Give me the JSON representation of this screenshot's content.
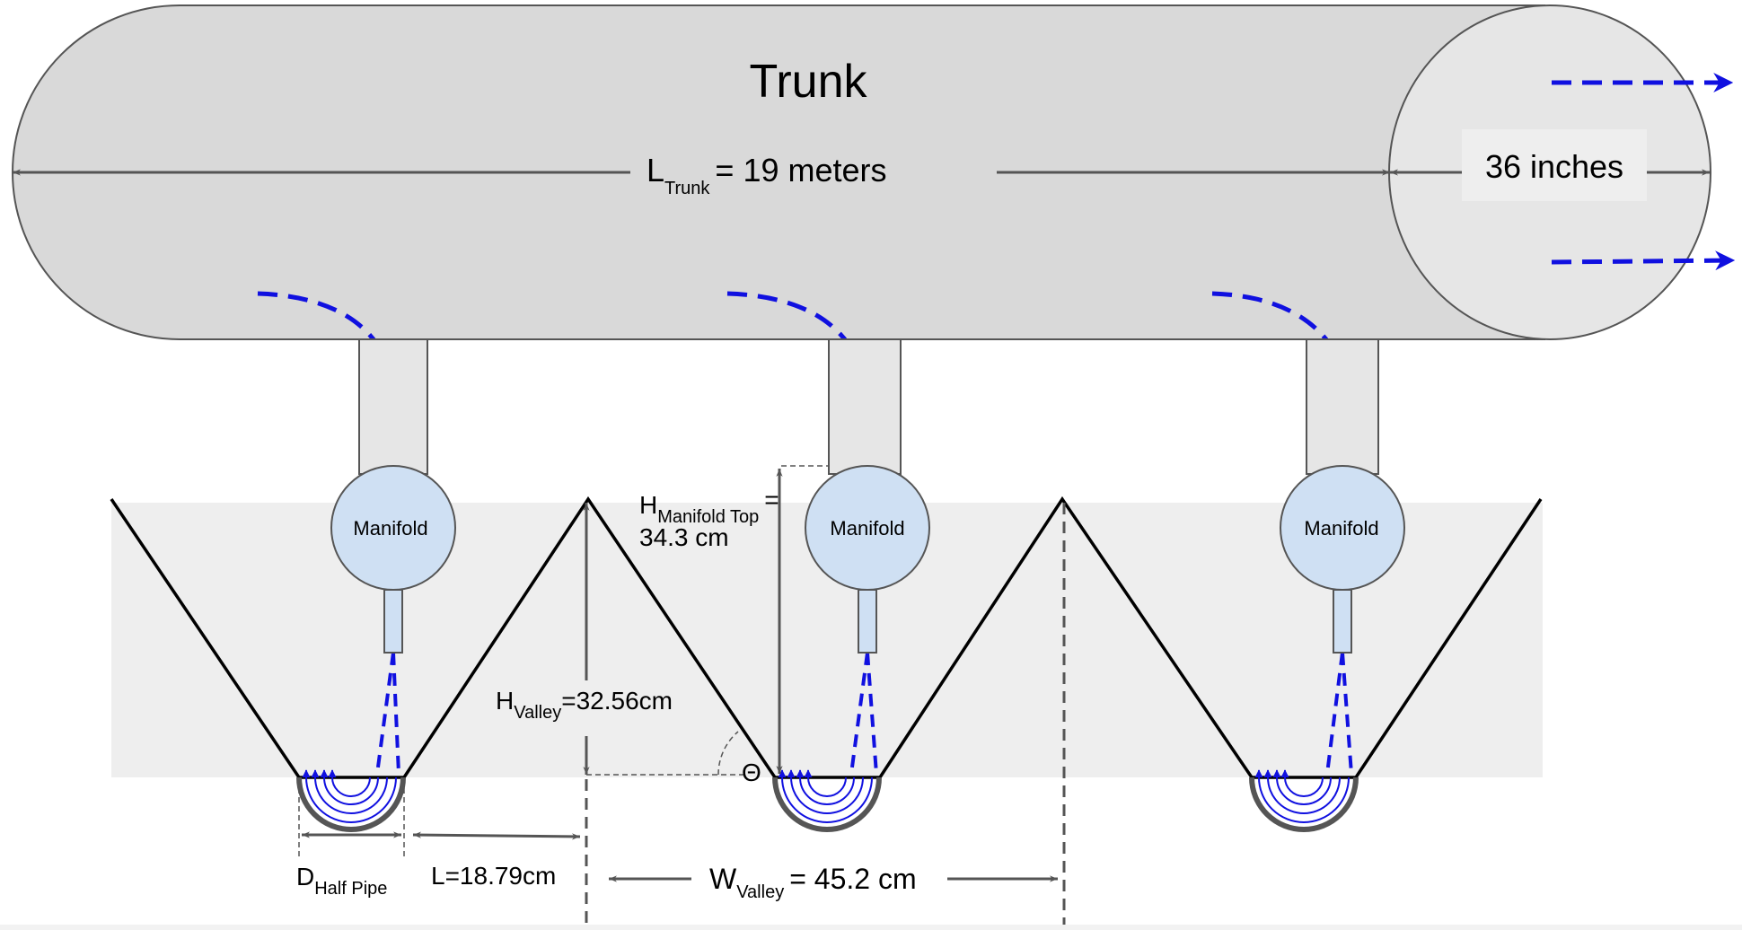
{
  "title": "Trunk",
  "trunk_length": {
    "main": "L",
    "sub": "Trunk",
    "value": "= 19 meters"
  },
  "trunk_diameter": "36 inches",
  "manifold_label": "Manifold",
  "h_manifold_top": {
    "main": "H",
    "sub": "Manifold Top",
    "eq": "=",
    "value": "34.3 cm"
  },
  "h_valley": {
    "main": "H",
    "sub": "Valley",
    "value": "=32.56cm"
  },
  "theta": "Θ",
  "length_l": "L=18.79cm",
  "d_half_pipe": {
    "main": "D",
    "sub": "Half Pipe"
  },
  "w_valley": {
    "main": "W",
    "sub": "Valley",
    "value": "= 45.2 cm"
  },
  "colors": {
    "trunk_fill": "#d9d9d9",
    "trunk_cap": "#e6e6e6",
    "ground": "#eeeeee",
    "manifold": "#cfe0f3",
    "flow": "#1010e0",
    "dimension": "#555555"
  }
}
